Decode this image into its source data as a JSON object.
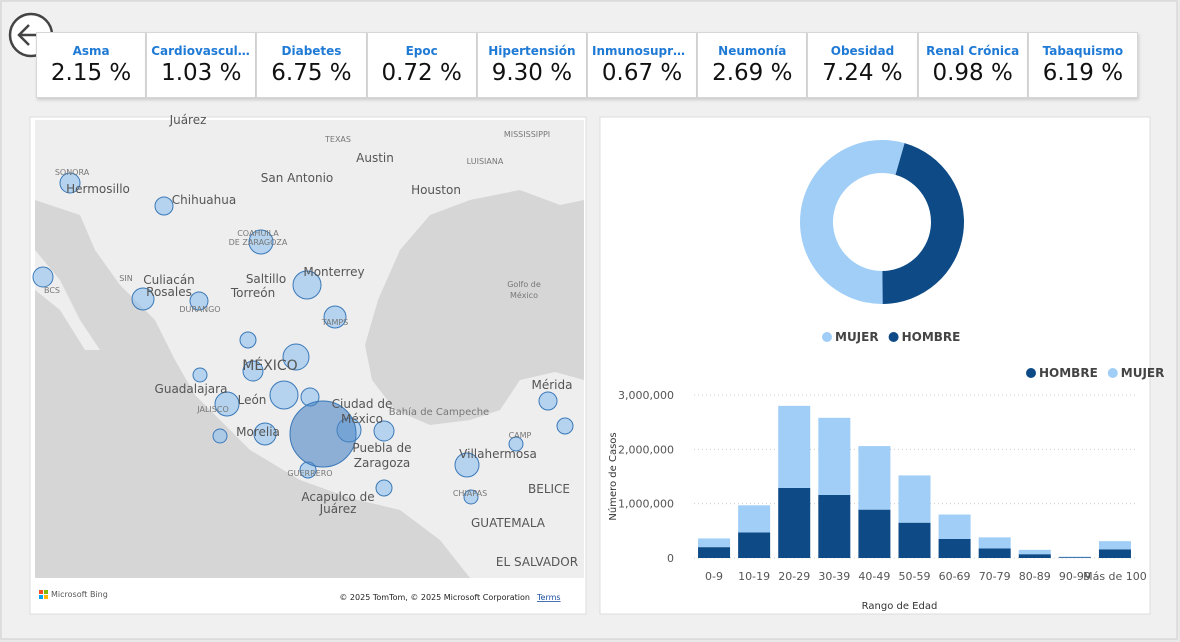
{
  "kpis": [
    {
      "label": "Asma",
      "value": "2.15 %"
    },
    {
      "label": "Cardiovascular",
      "value": "1.03 %"
    },
    {
      "label": "Diabetes",
      "value": "6.75 %"
    },
    {
      "label": "Epoc",
      "value": "0.72 %"
    },
    {
      "label": "Hipertensión",
      "value": "9.30 %"
    },
    {
      "label": "Inmunosupre...",
      "value": "0.67 %"
    },
    {
      "label": "Neumonía",
      "value": "2.69 %"
    },
    {
      "label": "Obesidad",
      "value": "7.24 %"
    },
    {
      "label": "Renal Crónica",
      "value": "0.98 %"
    },
    {
      "label": "Tabaquismo",
      "value": "6.19 %"
    }
  ],
  "map": {
    "labels": [
      "Juárez",
      "TEXAS",
      "MISSISSIPPI",
      "Austin",
      "LUISIANA",
      "SONORA",
      "Hermosillo",
      "Chihuahua",
      "San Antonio",
      "Houston",
      "COAHUILA",
      "DE ZARAGOZA",
      "Monterrey",
      "Golfo de",
      "México",
      "SIN",
      "Culiacán",
      "Rosales",
      "BCS",
      "DURANGO",
      "Saltillo",
      "Torreón",
      "TAMPS",
      "MÉXICO",
      "Guadalajara",
      "León",
      "Mérida",
      "Ciudad de",
      "México",
      "Bahía de Campeche",
      "JALISCO",
      "Morelia",
      "Puebla de",
      "Zaragoza",
      "Villahermosa",
      "CAMP",
      "GUERRERO",
      "Acapulco de",
      "Juárez",
      "BELICE",
      "CHIAPAS",
      "GUATEMALA",
      "EL SALVADOR",
      "Microsoft Bing",
      "© 2025 TomTom, © 2025 Microsoft Corporation",
      "Terms"
    ]
  },
  "chart_data": [
    {
      "type": "donut",
      "categories": [
        "MUJER",
        "HOMBRE"
      ],
      "values": [
        6525000,
        5430000
      ],
      "colors": [
        "#a0cef7",
        "#0d4a86"
      ]
    },
    {
      "type": "bar",
      "stacked": true,
      "x_label": "Rango de Edad",
      "y_label": "Número de Casos",
      "categories": [
        "0-9",
        "10-19",
        "20-29",
        "30-39",
        "40-49",
        "50-59",
        "60-69",
        "70-79",
        "80-89",
        "90-99",
        "Más de 100"
      ],
      "series": [
        {
          "name": "HOMBRE",
          "color": "#0d4a86",
          "values": [
            200000,
            470000,
            1290000,
            1160000,
            890000,
            650000,
            350000,
            175000,
            70000,
            15000,
            160000
          ]
        },
        {
          "name": "MUJER",
          "color": "#a0cef7",
          "values": [
            160000,
            500000,
            1510000,
            1420000,
            1170000,
            870000,
            450000,
            205000,
            80000,
            10000,
            150000
          ]
        }
      ],
      "ylim": [
        0,
        3000000
      ],
      "yticks": [
        0,
        {
          "value": 1000000,
          "label": "1,000,000"
        },
        {
          "value": 2000000,
          "label": "2,000,000"
        },
        {
          "value": 3000000,
          "label": "3,000,000"
        }
      ],
      "grid": true
    }
  ]
}
